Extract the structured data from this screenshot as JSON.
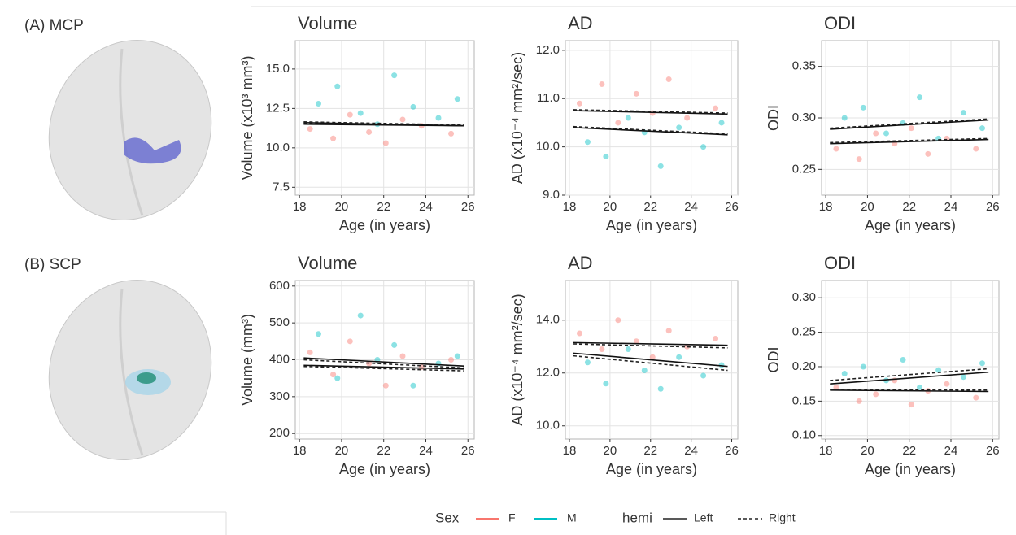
{
  "panels": [
    "(A) MCP",
    "(B) SCP"
  ],
  "legend": {
    "color_title": "Sex",
    "linetype_title": "hemi",
    "linetypes": [
      "Left",
      "Right"
    ]
  },
  "chart_data": [
    {
      "type": "scatter",
      "title": "Volume",
      "xlabel": "Age (in years)",
      "ylabel": "Volume (x10³ mm³)",
      "xlim": [
        17.8,
        26.3
      ],
      "xticks": [
        18,
        20,
        22,
        24,
        26
      ],
      "ylim": [
        7,
        16.8
      ],
      "yticks": [
        7.5,
        {
          "value": 10,
          "label": "10.0"
        },
        12.5,
        {
          "value": 15,
          "label": "15.0"
        }
      ],
      "grid": true,
      "fit_x": [
        18.2,
        25.8
      ],
      "series": [
        {
          "name": "F",
          "color": "#f8766d",
          "x": [
            18.5,
            19.6,
            20.4,
            21.3,
            22.1,
            22.9,
            23.8,
            25.2
          ],
          "y": [
            11.2,
            10.6,
            12.1,
            11.0,
            10.3,
            11.8,
            11.4,
            10.9
          ],
          "fit_left": [
            11.5,
            11.4
          ],
          "fit_right": [
            11.55,
            11.45
          ]
        },
        {
          "name": "M",
          "color": "#00bfc4",
          "x": [
            18.9,
            19.8,
            20.9,
            21.7,
            22.5,
            23.4,
            24.6,
            25.5
          ],
          "y": [
            12.8,
            13.9,
            12.2,
            11.5,
            14.6,
            12.6,
            11.9,
            13.1
          ],
          "fit_left": [
            11.6,
            11.4
          ],
          "fit_right": [
            11.65,
            11.45
          ]
        }
      ]
    },
    {
      "type": "scatter",
      "title": "AD",
      "xlabel": "Age (in years)",
      "ylabel": "AD (x10⁻⁴  mm²/sec)",
      "xlim": [
        17.8,
        26.3
      ],
      "xticks": [
        18,
        20,
        22,
        24,
        26
      ],
      "ylim": [
        9,
        12.2
      ],
      "yticks": [
        {
          "value": 9,
          "label": "9.0"
        },
        {
          "value": 10,
          "label": "10.0"
        },
        {
          "value": 11,
          "label": "11.0"
        },
        {
          "value": 12,
          "label": "12.0"
        }
      ],
      "grid": true,
      "fit_x": [
        18.2,
        25.8
      ],
      "series": [
        {
          "name": "F",
          "color": "#f8766d",
          "x": [
            18.5,
            19.6,
            20.4,
            21.3,
            22.1,
            22.9,
            23.8,
            25.2
          ],
          "y": [
            10.9,
            11.3,
            10.5,
            11.1,
            10.7,
            11.4,
            10.6,
            10.8
          ],
          "fit_left": [
            10.75,
            10.68
          ],
          "fit_right": [
            10.77,
            10.7
          ]
        },
        {
          "name": "M",
          "color": "#00bfc4",
          "x": [
            18.9,
            19.8,
            20.9,
            21.7,
            22.5,
            23.4,
            24.6,
            25.5
          ],
          "y": [
            10.1,
            9.8,
            10.6,
            10.3,
            9.6,
            10.4,
            10.0,
            10.5
          ],
          "fit_left": [
            10.4,
            10.25
          ],
          "fit_right": [
            10.42,
            10.27
          ]
        }
      ]
    },
    {
      "type": "scatter",
      "title": "ODI",
      "xlabel": "Age (in years)",
      "ylabel": "ODI",
      "xlim": [
        17.8,
        26.3
      ],
      "xticks": [
        18,
        20,
        22,
        24,
        26
      ],
      "ylim": [
        0.225,
        0.375
      ],
      "yticks": [
        0.25,
        {
          "value": 0.3,
          "label": "0.30"
        },
        0.35
      ],
      "grid": true,
      "fit_x": [
        18.2,
        25.8
      ],
      "series": [
        {
          "name": "F",
          "color": "#f8766d",
          "x": [
            18.5,
            19.6,
            20.4,
            21.3,
            22.1,
            22.9,
            23.8,
            25.2
          ],
          "y": [
            0.27,
            0.26,
            0.285,
            0.275,
            0.29,
            0.265,
            0.28,
            0.27
          ],
          "fit_left": [
            0.275,
            0.279
          ],
          "fit_right": [
            0.276,
            0.28
          ]
        },
        {
          "name": "M",
          "color": "#00bfc4",
          "x": [
            18.9,
            19.8,
            20.9,
            21.7,
            22.5,
            23.4,
            24.6,
            25.5
          ],
          "y": [
            0.3,
            0.31,
            0.285,
            0.295,
            0.32,
            0.28,
            0.305,
            0.29
          ],
          "fit_left": [
            0.289,
            0.298
          ],
          "fit_right": [
            0.29,
            0.299
          ]
        }
      ]
    },
    {
      "type": "scatter",
      "title": "Volume",
      "xlabel": "Age (in years)",
      "ylabel": "Volume (mm³)",
      "xlim": [
        17.8,
        26.3
      ],
      "xticks": [
        18,
        20,
        22,
        24,
        26
      ],
      "ylim": [
        185,
        615
      ],
      "yticks": [
        200,
        300,
        400,
        500,
        600
      ],
      "grid": true,
      "fit_x": [
        18.2,
        25.8
      ],
      "series": [
        {
          "name": "F",
          "color": "#f8766d",
          "x": [
            18.5,
            19.6,
            20.4,
            21.3,
            22.1,
            22.9,
            23.8,
            25.2
          ],
          "y": [
            420,
            360,
            450,
            390,
            330,
            410,
            380,
            400
          ],
          "fit_left": [
            405,
            383
          ],
          "fit_right": [
            400,
            378
          ]
        },
        {
          "name": "M",
          "color": "#00bfc4",
          "x": [
            18.9,
            19.8,
            20.9,
            21.7,
            22.5,
            23.4,
            24.6,
            25.5
          ],
          "y": [
            470,
            350,
            520,
            400,
            440,
            330,
            390,
            410
          ],
          "fit_left": [
            385,
            375
          ],
          "fit_right": [
            382,
            370
          ]
        }
      ]
    },
    {
      "type": "scatter",
      "title": "AD",
      "xlabel": "Age (in years)",
      "ylabel": "AD (x10⁻⁴  mm²/sec)",
      "xlim": [
        17.8,
        26.3
      ],
      "xticks": [
        18,
        20,
        22,
        24,
        26
      ],
      "ylim": [
        9.5,
        15.5
      ],
      "yticks": [
        {
          "value": 10,
          "label": "10.0"
        },
        {
          "value": 12,
          "label": "12.0"
        },
        {
          "value": 14,
          "label": "14.0"
        }
      ],
      "grid": true,
      "fit_x": [
        18.2,
        25.8
      ],
      "series": [
        {
          "name": "F",
          "color": "#f8766d",
          "x": [
            18.5,
            19.6,
            20.4,
            21.3,
            22.1,
            22.9,
            23.8,
            25.2
          ],
          "y": [
            13.5,
            12.9,
            14.0,
            13.2,
            12.6,
            13.6,
            13.0,
            13.3
          ],
          "fit_left": [
            13.15,
            13.05
          ],
          "fit_right": [
            13.1,
            12.95
          ]
        },
        {
          "name": "M",
          "color": "#00bfc4",
          "x": [
            18.9,
            19.8,
            20.9,
            21.7,
            22.5,
            23.4,
            24.6,
            25.5
          ],
          "y": [
            12.4,
            11.6,
            12.9,
            12.1,
            11.4,
            12.6,
            11.9,
            12.3
          ],
          "fit_left": [
            12.75,
            12.25
          ],
          "fit_right": [
            12.65,
            12.1
          ]
        }
      ]
    },
    {
      "type": "scatter",
      "title": "ODI",
      "xlabel": "Age (in years)",
      "ylabel": "ODI",
      "xlim": [
        17.8,
        26.3
      ],
      "xticks": [
        18,
        20,
        22,
        24,
        26
      ],
      "ylim": [
        0.095,
        0.325
      ],
      "yticks": [
        {
          "value": 0.1,
          "label": "0.10"
        },
        0.15,
        {
          "value": 0.2,
          "label": "0.20"
        },
        0.25,
        {
          "value": 0.3,
          "label": "0.30"
        }
      ],
      "grid": true,
      "fit_x": [
        18.2,
        25.8
      ],
      "series": [
        {
          "name": "F",
          "color": "#f8766d",
          "x": [
            18.5,
            19.6,
            20.4,
            21.3,
            22.1,
            22.9,
            23.8,
            25.2
          ],
          "y": [
            0.17,
            0.15,
            0.16,
            0.18,
            0.145,
            0.165,
            0.175,
            0.155
          ],
          "fit_left": [
            0.166,
            0.164
          ],
          "fit_right": [
            0.167,
            0.166
          ]
        },
        {
          "name": "M",
          "color": "#00bfc4",
          "x": [
            18.9,
            19.8,
            20.9,
            21.7,
            22.5,
            23.4,
            24.6,
            25.5
          ],
          "y": [
            0.19,
            0.2,
            0.18,
            0.21,
            0.17,
            0.195,
            0.185,
            0.205
          ],
          "fit_left": [
            0.175,
            0.192
          ],
          "fit_right": [
            0.18,
            0.197
          ]
        }
      ]
    }
  ]
}
